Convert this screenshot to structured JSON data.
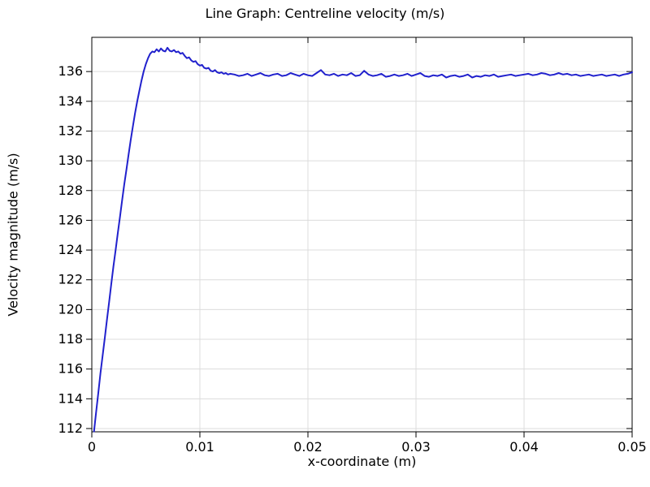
{
  "chart_data": {
    "type": "line",
    "title": "Line Graph: Centreline velocity (m/s)",
    "xlabel": "x-coordinate (m)",
    "ylabel": "Velocity magnitude (m/s)",
    "xlim": [
      0,
      0.05
    ],
    "ylim": [
      111.78,
      138.3
    ],
    "grid": true,
    "legend": "none",
    "x_ticks": {
      "values": [
        0,
        0.01,
        0.02,
        0.03,
        0.04,
        0.05
      ],
      "labels": [
        "0",
        "0.01",
        "0.02",
        "0.03",
        "0.04",
        "0.05"
      ]
    },
    "y_ticks": {
      "values": [
        112,
        114,
        116,
        118,
        120,
        122,
        124,
        126,
        128,
        130,
        132,
        134,
        136
      ],
      "labels": [
        "112",
        "114",
        "116",
        "118",
        "120",
        "122",
        "124",
        "126",
        "128",
        "130",
        "132",
        "134",
        "136"
      ]
    },
    "colors": {
      "line": "#2121cd",
      "grid": "#dcdcdc",
      "frame": "#000000",
      "text": "#000000"
    },
    "series": [
      {
        "name": "centreline-velocity",
        "color": "#2121cd",
        "x_segments": [
          {
            "start": 0.0002,
            "step": 0.0002,
            "count": 64
          },
          {
            "start": 0.0132,
            "step": 0.0004,
            "count": 93
          }
        ],
        "y": [
          111.8,
          113.1,
          114.4,
          115.7,
          116.9,
          118.1,
          119.3,
          120.5,
          121.7,
          122.9,
          124.0,
          125.1,
          126.2,
          127.3,
          128.4,
          129.4,
          130.4,
          131.4,
          132.3,
          133.2,
          134.0,
          134.7,
          135.4,
          136.0,
          136.5,
          136.9,
          137.2,
          137.35,
          137.3,
          137.5,
          137.35,
          137.55,
          137.4,
          137.35,
          137.6,
          137.4,
          137.35,
          137.45,
          137.3,
          137.35,
          137.2,
          137.25,
          137.05,
          136.9,
          136.95,
          136.75,
          136.65,
          136.7,
          136.5,
          136.4,
          136.45,
          136.25,
          136.2,
          136.25,
          136.05,
          136.0,
          136.1,
          135.95,
          135.9,
          135.95,
          135.85,
          135.9,
          135.8,
          135.85,
          135.8,
          135.7,
          135.75,
          135.85,
          135.7,
          135.8,
          135.9,
          135.75,
          135.7,
          135.8,
          135.85,
          135.7,
          135.75,
          135.9,
          135.8,
          135.7,
          135.85,
          135.75,
          135.7,
          135.9,
          136.1,
          135.8,
          135.75,
          135.85,
          135.7,
          135.8,
          135.75,
          135.9,
          135.7,
          135.75,
          136.05,
          135.8,
          135.7,
          135.75,
          135.85,
          135.65,
          135.7,
          135.8,
          135.7,
          135.75,
          135.85,
          135.7,
          135.8,
          135.9,
          135.7,
          135.65,
          135.75,
          135.7,
          135.8,
          135.6,
          135.7,
          135.75,
          135.65,
          135.7,
          135.8,
          135.6,
          135.7,
          135.65,
          135.75,
          135.7,
          135.8,
          135.65,
          135.7,
          135.75,
          135.8,
          135.7,
          135.75,
          135.8,
          135.85,
          135.75,
          135.8,
          135.9,
          135.85,
          135.75,
          135.8,
          135.9,
          135.8,
          135.85,
          135.75,
          135.8,
          135.7,
          135.75,
          135.8,
          135.7,
          135.75,
          135.8,
          135.7,
          135.75,
          135.8,
          135.7,
          135.8,
          135.85,
          135.95
        ]
      }
    ]
  }
}
